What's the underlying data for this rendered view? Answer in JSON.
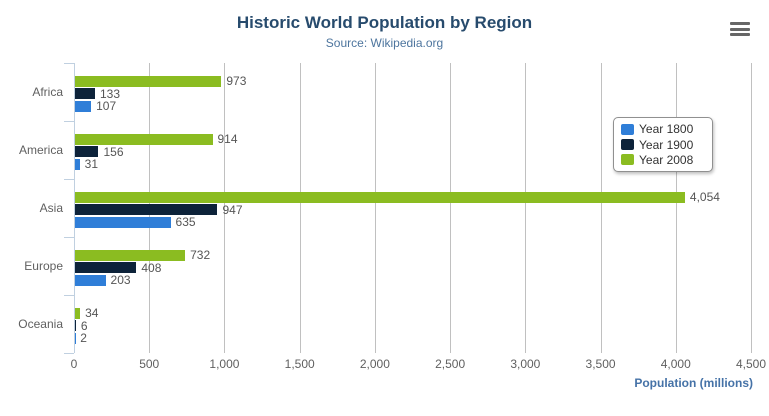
{
  "page": {
    "background": "#ffffff"
  },
  "icons": {
    "export_button": "hamburger-menu-icon"
  },
  "chart_data": {
    "type": "bar",
    "orientation": "horizontal",
    "title": "Historic World Population by Region",
    "subtitle": "Source: Wikipedia.org",
    "categories": [
      "Africa",
      "America",
      "Asia",
      "Europe",
      "Oceania"
    ],
    "series": [
      {
        "name": "Year 1800",
        "color": "#2f7ed8",
        "values": [
          107,
          31,
          635,
          203,
          2
        ]
      },
      {
        "name": "Year 1900",
        "color": "#0d233a",
        "values": [
          133,
          156,
          947,
          408,
          6
        ]
      },
      {
        "name": "Year 2008",
        "color": "#8bbc21",
        "values": [
          973,
          914,
          4054,
          732,
          34
        ]
      }
    ],
    "series_display_order_top_to_bottom": [
      "Year 2008",
      "Year 1900",
      "Year 1800"
    ],
    "data_labels_visible": true,
    "xlabel": "Population (millions)",
    "ylabel": "",
    "xlim": [
      0,
      4500
    ],
    "xticks": {
      "values": [
        0,
        500,
        1000,
        1500,
        2000,
        2500,
        3000,
        3500,
        4000,
        4500
      ],
      "labels": [
        "0",
        "500",
        "1,000",
        "1,500",
        "2,000",
        "2,500",
        "3,000",
        "3,500",
        "4,000",
        "4,500"
      ]
    },
    "grid": true,
    "legend": {
      "position": "right",
      "entries": [
        "Year 1800",
        "Year 1900",
        "Year 2008"
      ]
    },
    "colors": {
      "title": "#274b6d",
      "subtitle": "#4d759e",
      "axis_title": "#4572a7",
      "axis_labels": "#606060",
      "data_labels": "#555555",
      "gridline": "#c0c0c0",
      "axis_line": "#c0d0e0",
      "legend_border": "#909090",
      "export_icon": "#666666"
    }
  }
}
